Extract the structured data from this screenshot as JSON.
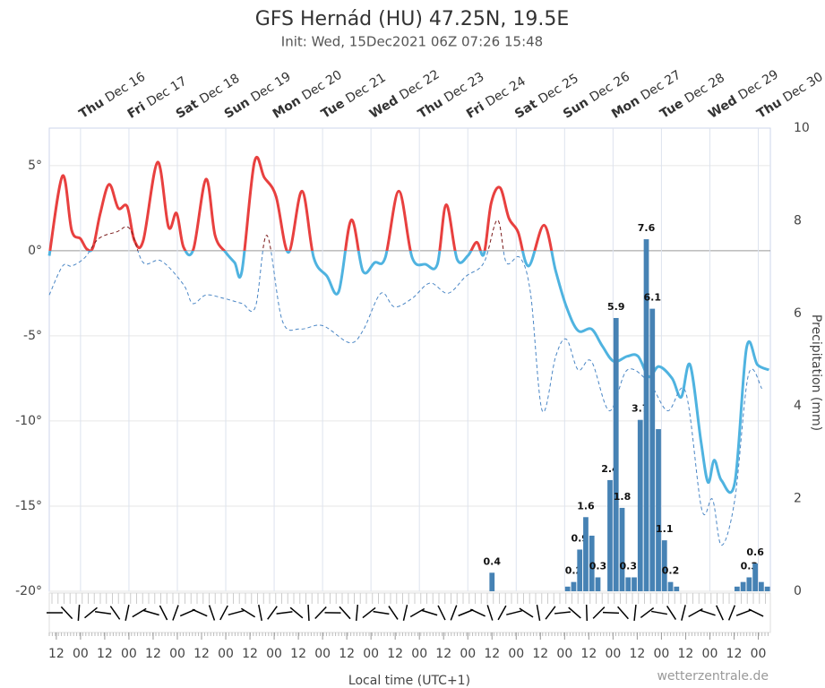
{
  "chart_data": {
    "type": "meteogram",
    "title": "GFS Hernád (HU) 47.25N, 19.5E",
    "subtitle": "Init: Wed, 15Dec2021 06Z 07:26 15:48",
    "xlabel": "Local time (UTC+1)",
    "y2label": "Precipitation (mm)",
    "credit": "wetterzentrale.de",
    "xlim": [
      -15.5,
      342
    ],
    "ylim": [
      -20,
      7.2
    ],
    "y2lim": [
      0,
      10
    ],
    "yticks": [
      {
        "value": 5,
        "label": "5°"
      },
      {
        "value": 0,
        "label": "0°"
      },
      {
        "value": -5,
        "label": "-5°"
      },
      {
        "value": -10,
        "label": "-10°"
      },
      {
        "value": -15,
        "label": "-15°"
      },
      {
        "value": -20,
        "label": "-20°"
      }
    ],
    "y2ticks": [
      0,
      2,
      4,
      6,
      8,
      10
    ],
    "xticks": [
      {
        "value": -12,
        "label": "12"
      },
      {
        "value": 0,
        "label": "00"
      },
      {
        "value": 12,
        "label": "12"
      },
      {
        "value": 24,
        "label": "00"
      },
      {
        "value": 36,
        "label": "12"
      },
      {
        "value": 48,
        "label": "00"
      },
      {
        "value": 60,
        "label": "12"
      },
      {
        "value": 72,
        "label": "00"
      },
      {
        "value": 84,
        "label": "12"
      },
      {
        "value": 96,
        "label": "00"
      },
      {
        "value": 108,
        "label": "12"
      },
      {
        "value": 120,
        "label": "00"
      },
      {
        "value": 132,
        "label": "12"
      },
      {
        "value": 144,
        "label": "00"
      },
      {
        "value": 156,
        "label": "12"
      },
      {
        "value": 168,
        "label": "00"
      },
      {
        "value": 180,
        "label": "12"
      },
      {
        "value": 192,
        "label": "00"
      },
      {
        "value": 204,
        "label": "12"
      },
      {
        "value": 216,
        "label": "00"
      },
      {
        "value": 228,
        "label": "12"
      },
      {
        "value": 240,
        "label": "00"
      },
      {
        "value": 252,
        "label": "12"
      },
      {
        "value": 264,
        "label": "00"
      },
      {
        "value": 276,
        "label": "12"
      },
      {
        "value": 288,
        "label": "00"
      },
      {
        "value": 300,
        "label": "12"
      },
      {
        "value": 312,
        "label": "00"
      },
      {
        "value": 324,
        "label": "12"
      },
      {
        "value": 336,
        "label": "00"
      }
    ],
    "x2ticks": [
      {
        "value": 0,
        "label": "Thu Dec 16"
      },
      {
        "value": 24,
        "label": "Fri Dec 17"
      },
      {
        "value": 48,
        "label": "Sat Dec 18"
      },
      {
        "value": 72,
        "label": "Sun Dec 19"
      },
      {
        "value": 96,
        "label": "Mon Dec 20"
      },
      {
        "value": 120,
        "label": "Tue Dec 21"
      },
      {
        "value": 144,
        "label": "Wed Dec 22"
      },
      {
        "value": 168,
        "label": "Thu Dec 23"
      },
      {
        "value": 192,
        "label": "Fri Dec 24"
      },
      {
        "value": 216,
        "label": "Sat Dec 25"
      },
      {
        "value": 240,
        "label": "Sun Dec 26"
      },
      {
        "value": 264,
        "label": "Mon Dec 27"
      },
      {
        "value": 288,
        "label": "Tue Dec 28"
      },
      {
        "value": 312,
        "label": "Wed Dec 29"
      },
      {
        "value": 336,
        "label": "Thu Dec 30"
      }
    ],
    "grid": true,
    "warm_color": "#e8403f",
    "cold_color": "#4fb3e0",
    "series": [
      {
        "name": "Temperature",
        "kind": "line",
        "x": [
          -15.5,
          -8.9,
          -4.4,
          0,
          3.1,
          6.2,
          9.8,
          14.2,
          18.7,
          23.1,
          26.7,
          31.1,
          38.2,
          43.6,
          47.6,
          51.1,
          56,
          62.2,
          66.7,
          72,
          76.4,
          80,
          86.2,
          91.1,
          96.9,
          103.1,
          109.8,
          115.6,
          122.2,
          128,
          134.2,
          140,
          145.8,
          151.1,
          157.8,
          164.4,
          171.1,
          176.9,
          181.3,
          186.7,
          192,
          196.4,
          200,
          203.6,
          208,
          212.4,
          216.9,
          222.2,
          229.8,
          235.6,
          240.9,
          246.7,
          253.3,
          258.7,
          264.4,
          271.1,
          276.4,
          281.8,
          286.7,
          293.3,
          297.8,
          302.2,
          307.6,
          311.1,
          314.2,
          317.8,
          324.4,
          330.2,
          335.6,
          341.3
        ],
        "values": [
          -0.3,
          4.4,
          1.2,
          0.7,
          0.1,
          0.2,
          2.2,
          3.9,
          2.5,
          2.6,
          0.6,
          0.6,
          5.2,
          1.4,
          2.2,
          0.2,
          0.1,
          4.2,
          0.9,
          -0.1,
          -0.7,
          -1.2,
          5.2,
          4.3,
          3.2,
          -0.1,
          3.5,
          -0.4,
          -1.5,
          -2.4,
          1.8,
          -1.2,
          -0.7,
          -0.4,
          3.5,
          -0.4,
          -0.8,
          -0.8,
          2.7,
          -0.5,
          -0.3,
          0.5,
          -0.2,
          2.8,
          3.7,
          1.9,
          1.1,
          -0.9,
          1.5,
          -1.2,
          -3.3,
          -4.7,
          -4.6,
          -5.6,
          -6.5,
          -6.2,
          -6.2,
          -7.4,
          -6.8,
          -7.5,
          -8.6,
          -6.7,
          -11.2,
          -13.6,
          -12.3,
          -13.5,
          -13.6,
          -5.7,
          -6.7,
          -7
        ]
      },
      {
        "name": "Dew point",
        "kind": "dashed",
        "x": [
          -15.5,
          -8.9,
          -4.4,
          2.2,
          8.9,
          17.8,
          24.4,
          31.1,
          40,
          51.1,
          55.6,
          62.2,
          71.1,
          80,
          86.7,
          92.4,
          100,
          108.9,
          120,
          133.3,
          140,
          148.9,
          155.6,
          164.4,
          173.3,
          182.2,
          191.1,
          200,
          206.7,
          211.1,
          217.8,
          223.1,
          228.9,
          235.6,
          240.9,
          246.7,
          253.3,
          262.2,
          271.1,
          282.2,
          291.1,
          300,
          308,
          313.3,
          317.8,
          324.4,
          331.1,
          337.8
        ],
        "values": [
          -2.6,
          -0.9,
          -0.9,
          -0.4,
          0.7,
          1.1,
          1.3,
          -0.7,
          -0.6,
          -2,
          -3.1,
          -2.6,
          -2.8,
          -3.1,
          -3.3,
          0.9,
          -4.1,
          -4.6,
          -4.4,
          -5.4,
          -4.7,
          -2.5,
          -3.3,
          -2.8,
          -1.9,
          -2.5,
          -1.5,
          -0.7,
          1.8,
          -0.7,
          -0.4,
          -2.5,
          -9.4,
          -6.2,
          -5.2,
          -7,
          -6.5,
          -9.4,
          -7,
          -7.8,
          -9.4,
          -8.3,
          -15.2,
          -14.6,
          -17.3,
          -14.6,
          -7.3,
          -8.1
        ]
      },
      {
        "name": "Precipitation",
        "kind": "bar",
        "axis": "y2",
        "color": "#4682b4",
        "x": [
          204,
          241.5,
          244.5,
          247.5,
          250.5,
          253.5,
          256.5,
          262.5,
          265.5,
          268.5,
          271.5,
          274.5,
          277.5,
          280.5,
          283.5,
          286.5,
          289.5,
          292.5,
          295.5,
          325.5,
          328.5,
          331.5,
          334.5,
          337.5,
          340.5
        ],
        "values": [
          0.4,
          0.1,
          0.2,
          0.9,
          1.6,
          1.2,
          0.3,
          2.4,
          5.9,
          1.8,
          0.3,
          0.3,
          3.7,
          7.6,
          6.1,
          3.5,
          1.1,
          0.2,
          0.1,
          0.1,
          0.2,
          0.3,
          0.6,
          0.2,
          0.1
        ],
        "value_labels": [
          "0.4",
          null,
          "0.2",
          "0.9",
          "1.6",
          null,
          "0.3",
          "2.4",
          "5.9",
          "1.8",
          "0.3",
          null,
          "3.7",
          "7.6",
          "6.1",
          null,
          "1.1",
          "0.2",
          null,
          null,
          null,
          "0.3",
          "0.6",
          null,
          null
        ]
      }
    ]
  }
}
